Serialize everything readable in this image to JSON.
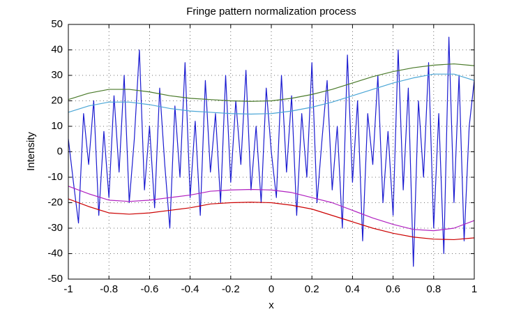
{
  "chart_data": {
    "type": "line",
    "title": "Fringe pattern normalization process",
    "x_label": "x",
    "y_label": "Intensity",
    "xlim": [
      -1,
      1
    ],
    "ylim": [
      -50,
      50
    ],
    "xticks": [
      -1,
      -0.8,
      -0.6,
      -0.4,
      -0.2,
      0,
      0.2,
      0.4,
      0.6,
      0.8,
      1
    ],
    "yticks": [
      -50,
      -40,
      -30,
      -20,
      -10,
      0,
      10,
      20,
      30,
      40,
      50
    ],
    "grid": true,
    "series": [
      {
        "color": "#1a1ad0",
        "x": [
          -1,
          -0.975,
          -0.95,
          -0.925,
          -0.9,
          -0.875,
          -0.85,
          -0.825,
          -0.8,
          -0.775,
          -0.75,
          -0.725,
          -0.7,
          -0.675,
          -0.65,
          -0.625,
          -0.6,
          -0.575,
          -0.55,
          -0.525,
          -0.5,
          -0.475,
          -0.45,
          -0.425,
          -0.4,
          -0.375,
          -0.35,
          -0.325,
          -0.3,
          -0.275,
          -0.25,
          -0.225,
          -0.2,
          -0.175,
          -0.15,
          -0.125,
          -0.1,
          -0.075,
          -0.05,
          -0.025,
          0,
          0.025,
          0.05,
          0.075,
          0.1,
          0.125,
          0.15,
          0.175,
          0.2,
          0.225,
          0.25,
          0.275,
          0.3,
          0.325,
          0.35,
          0.375,
          0.4,
          0.425,
          0.45,
          0.475,
          0.5,
          0.525,
          0.55,
          0.575,
          0.6,
          0.625,
          0.65,
          0.675,
          0.7,
          0.725,
          0.75,
          0.775,
          0.8,
          0.825,
          0.85,
          0.875,
          0.9,
          0.925,
          0.95,
          0.975,
          1
        ],
        "values": [
          5,
          -12,
          -28,
          15,
          -5,
          20,
          -25,
          8,
          -18,
          22,
          -8,
          30,
          -20,
          5,
          40,
          -15,
          10,
          -22,
          25,
          -5,
          -30,
          18,
          -10,
          35,
          -18,
          12,
          -25,
          28,
          -8,
          15,
          -20,
          30,
          -12,
          20,
          -5,
          32,
          -15,
          10,
          -20,
          25,
          0,
          -18,
          30,
          -8,
          22,
          -25,
          15,
          -10,
          35,
          -20,
          5,
          28,
          -15,
          10,
          -30,
          38,
          -12,
          20,
          -35,
          15,
          -5,
          30,
          -20,
          8,
          -25,
          40,
          -15,
          25,
          -45,
          20,
          -10,
          35,
          -30,
          15,
          -40,
          45,
          -20,
          30,
          -35,
          10,
          28
        ]
      },
      {
        "color": "#4a7a2a",
        "x": [
          -1,
          -0.9,
          -0.8,
          -0.7,
          -0.6,
          -0.5,
          -0.4,
          -0.3,
          -0.2,
          -0.1,
          0,
          0.1,
          0.2,
          0.3,
          0.4,
          0.5,
          0.6,
          0.7,
          0.8,
          0.9,
          1
        ],
        "values": [
          20.5,
          23,
          24.5,
          24.5,
          23.5,
          22,
          21,
          20.5,
          20,
          19.8,
          20,
          21,
          22.5,
          24.5,
          27,
          29.5,
          31.5,
          33,
          34,
          34.5,
          33.8
        ]
      },
      {
        "color": "#4aa6d6",
        "x": [
          -1,
          -0.9,
          -0.8,
          -0.7,
          -0.6,
          -0.5,
          -0.4,
          -0.3,
          -0.2,
          -0.1,
          0,
          0.1,
          0.2,
          0.3,
          0.4,
          0.5,
          0.6,
          0.7,
          0.8,
          0.9,
          1
        ],
        "values": [
          15.5,
          18,
          19.5,
          19.5,
          18.5,
          17,
          16,
          15.5,
          15,
          14.8,
          15,
          16,
          17.5,
          19.5,
          22,
          24.5,
          27,
          29,
          30.5,
          30.5,
          28
        ]
      },
      {
        "color": "#b020c0",
        "x": [
          -1,
          -0.9,
          -0.8,
          -0.7,
          -0.6,
          -0.5,
          -0.4,
          -0.3,
          -0.2,
          -0.1,
          0,
          0.1,
          0.2,
          0.3,
          0.4,
          0.5,
          0.6,
          0.7,
          0.8,
          0.9,
          1
        ],
        "values": [
          -13.5,
          -16.5,
          -19,
          -19.5,
          -19,
          -18,
          -17,
          -15.5,
          -15,
          -14.8,
          -15,
          -16,
          -18,
          -20,
          -23,
          -26,
          -28.5,
          -30.5,
          -31,
          -30,
          -27
        ]
      },
      {
        "color": "#cc0000",
        "x": [
          -1,
          -0.9,
          -0.8,
          -0.7,
          -0.6,
          -0.5,
          -0.4,
          -0.3,
          -0.2,
          -0.1,
          0,
          0.1,
          0.2,
          0.3,
          0.4,
          0.5,
          0.6,
          0.7,
          0.8,
          0.9,
          1
        ],
        "values": [
          -18.5,
          -21.5,
          -24,
          -24.5,
          -24,
          -23,
          -22,
          -20.5,
          -20,
          -19.8,
          -20,
          -21,
          -22.5,
          -25,
          -27.5,
          -30,
          -32,
          -33.5,
          -34.3,
          -34.5,
          -33.8
        ]
      }
    ]
  }
}
